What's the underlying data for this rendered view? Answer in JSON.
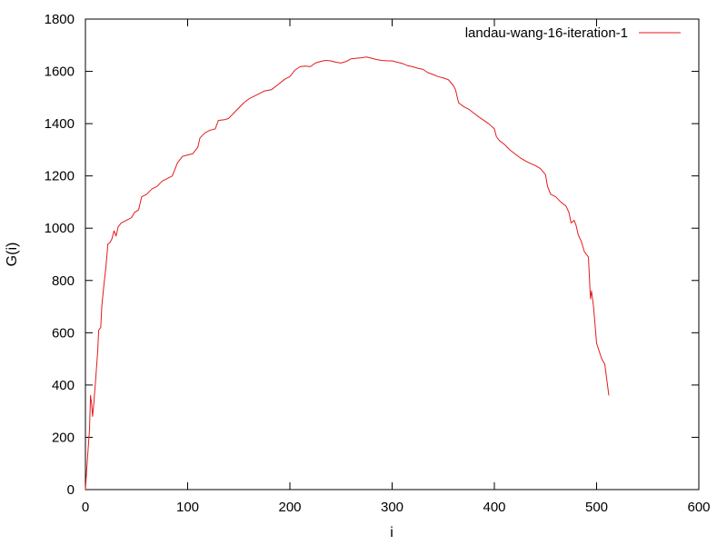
{
  "chart_data": {
    "type": "line",
    "xlabel": "i",
    "ylabel": "G(i)",
    "xlim": [
      0,
      600
    ],
    "ylim": [
      0,
      1800
    ],
    "xticks": [
      0,
      100,
      200,
      300,
      400,
      500,
      600
    ],
    "yticks": [
      0,
      200,
      400,
      600,
      800,
      1000,
      1200,
      1400,
      1600,
      1800
    ],
    "grid": false,
    "legend_position": "top-right",
    "series": [
      {
        "name": "landau-wang-16-iteration-1",
        "color": "#e41a1c",
        "points": [
          [
            0,
            0
          ],
          [
            2,
            120
          ],
          [
            4,
            230
          ],
          [
            5,
            360
          ],
          [
            6,
            330
          ],
          [
            7,
            280
          ],
          [
            8,
            320
          ],
          [
            10,
            420
          ],
          [
            12,
            530
          ],
          [
            13,
            610
          ],
          [
            15,
            620
          ],
          [
            16,
            700
          ],
          [
            18,
            780
          ],
          [
            20,
            850
          ],
          [
            22,
            940
          ],
          [
            24,
            945
          ],
          [
            26,
            960
          ],
          [
            28,
            990
          ],
          [
            30,
            970
          ],
          [
            32,
            1005
          ],
          [
            35,
            1020
          ],
          [
            40,
            1030
          ],
          [
            45,
            1040
          ],
          [
            48,
            1060
          ],
          [
            52,
            1070
          ],
          [
            55,
            1120
          ],
          [
            60,
            1130
          ],
          [
            65,
            1150
          ],
          [
            70,
            1160
          ],
          [
            75,
            1180
          ],
          [
            80,
            1190
          ],
          [
            85,
            1200
          ],
          [
            90,
            1250
          ],
          [
            95,
            1275
          ],
          [
            100,
            1280
          ],
          [
            105,
            1285
          ],
          [
            110,
            1310
          ],
          [
            112,
            1345
          ],
          [
            117,
            1365
          ],
          [
            122,
            1375
          ],
          [
            127,
            1380
          ],
          [
            130,
            1412
          ],
          [
            136,
            1415
          ],
          [
            140,
            1420
          ],
          [
            145,
            1440
          ],
          [
            150,
            1460
          ],
          [
            155,
            1480
          ],
          [
            160,
            1495
          ],
          [
            165,
            1505
          ],
          [
            170,
            1515
          ],
          [
            175,
            1525
          ],
          [
            182,
            1530
          ],
          [
            188,
            1548
          ],
          [
            195,
            1570
          ],
          [
            200,
            1580
          ],
          [
            205,
            1605
          ],
          [
            210,
            1618
          ],
          [
            215,
            1620
          ],
          [
            220,
            1618
          ],
          [
            225,
            1632
          ],
          [
            230,
            1638
          ],
          [
            235,
            1642
          ],
          [
            240,
            1640
          ],
          [
            245,
            1635
          ],
          [
            250,
            1632
          ],
          [
            255,
            1638
          ],
          [
            260,
            1648
          ],
          [
            265,
            1650
          ],
          [
            270,
            1652
          ],
          [
            275,
            1655
          ],
          [
            280,
            1650
          ],
          [
            285,
            1645
          ],
          [
            290,
            1642
          ],
          [
            295,
            1640
          ],
          [
            300,
            1640
          ],
          [
            305,
            1635
          ],
          [
            310,
            1630
          ],
          [
            315,
            1622
          ],
          [
            320,
            1618
          ],
          [
            325,
            1612
          ],
          [
            330,
            1608
          ],
          [
            335,
            1595
          ],
          [
            340,
            1588
          ],
          [
            345,
            1580
          ],
          [
            350,
            1575
          ],
          [
            355,
            1568
          ],
          [
            360,
            1545
          ],
          [
            362,
            1530
          ],
          [
            365,
            1480
          ],
          [
            370,
            1465
          ],
          [
            375,
            1455
          ],
          [
            380,
            1440
          ],
          [
            385,
            1425
          ],
          [
            390,
            1412
          ],
          [
            395,
            1398
          ],
          [
            400,
            1380
          ],
          [
            402,
            1350
          ],
          [
            405,
            1335
          ],
          [
            410,
            1320
          ],
          [
            415,
            1300
          ],
          [
            420,
            1285
          ],
          [
            425,
            1270
          ],
          [
            430,
            1258
          ],
          [
            435,
            1248
          ],
          [
            440,
            1240
          ],
          [
            445,
            1228
          ],
          [
            450,
            1205
          ],
          [
            452,
            1160
          ],
          [
            455,
            1130
          ],
          [
            460,
            1120
          ],
          [
            465,
            1100
          ],
          [
            470,
            1085
          ],
          [
            473,
            1060
          ],
          [
            475,
            1020
          ],
          [
            478,
            1030
          ],
          [
            480,
            1010
          ],
          [
            482,
            975
          ],
          [
            485,
            950
          ],
          [
            488,
            910
          ],
          [
            490,
            900
          ],
          [
            492,
            890
          ],
          [
            494,
            730
          ],
          [
            495,
            760
          ],
          [
            497,
            700
          ],
          [
            500,
            560
          ],
          [
            505,
            500
          ],
          [
            508,
            480
          ],
          [
            512,
            360
          ]
        ]
      }
    ]
  }
}
